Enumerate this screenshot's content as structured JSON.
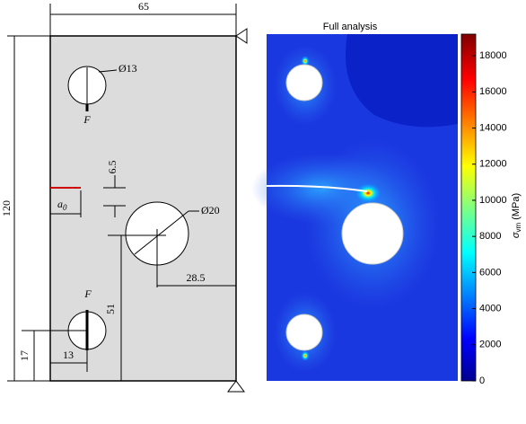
{
  "diagram": {
    "dimensions": {
      "width": "65",
      "height": "120",
      "hole_top": "Ø13",
      "hole_mid": "Ø20",
      "offset_crack": "6.5",
      "crack": "a",
      "crack_sub": "0",
      "mid_x": "28.5",
      "mid_y": "51",
      "bottom_y": "17",
      "bottom_x": "13"
    },
    "loads": {
      "top": "F",
      "bottom": "F"
    }
  },
  "plot": {
    "title": "Full analysis",
    "colorbar": {
      "label": "σ",
      "label_sub": "vm",
      "label_unit": " (MPa)",
      "range": [
        0,
        19200
      ],
      "ticks": [
        0,
        2000,
        4000,
        6000,
        8000,
        10000,
        12000,
        14000,
        16000,
        18000
      ]
    }
  }
}
